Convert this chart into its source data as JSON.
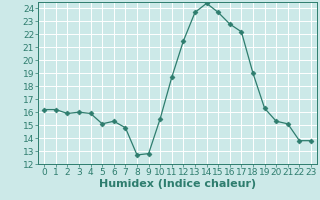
{
  "x": [
    0,
    1,
    2,
    3,
    4,
    5,
    6,
    7,
    8,
    9,
    10,
    11,
    12,
    13,
    14,
    15,
    16,
    17,
    18,
    19,
    20,
    21,
    22,
    23
  ],
  "y": [
    16.2,
    16.2,
    15.9,
    16.0,
    15.9,
    15.1,
    15.3,
    14.8,
    12.7,
    12.8,
    15.5,
    18.7,
    21.5,
    23.7,
    24.4,
    23.7,
    22.8,
    22.2,
    19.0,
    16.3,
    15.3,
    15.1,
    13.8,
    13.8
  ],
  "line_color": "#2e7d6e",
  "marker": "D",
  "markersize": 2.5,
  "bg_color": "#cce9e8",
  "grid_color": "#ffffff",
  "xlabel": "Humidex (Indice chaleur)",
  "xlim": [
    -0.5,
    23.5
  ],
  "ylim": [
    12,
    24.5
  ],
  "yticks": [
    12,
    13,
    14,
    15,
    16,
    17,
    18,
    19,
    20,
    21,
    22,
    23,
    24
  ],
  "xticks": [
    0,
    1,
    2,
    3,
    4,
    5,
    6,
    7,
    8,
    9,
    10,
    11,
    12,
    13,
    14,
    15,
    16,
    17,
    18,
    19,
    20,
    21,
    22,
    23
  ],
  "tick_label_color": "#2e7d6e",
  "xlabel_color": "#2e7d6e",
  "xlabel_fontsize": 8,
  "tick_fontsize": 6.5
}
